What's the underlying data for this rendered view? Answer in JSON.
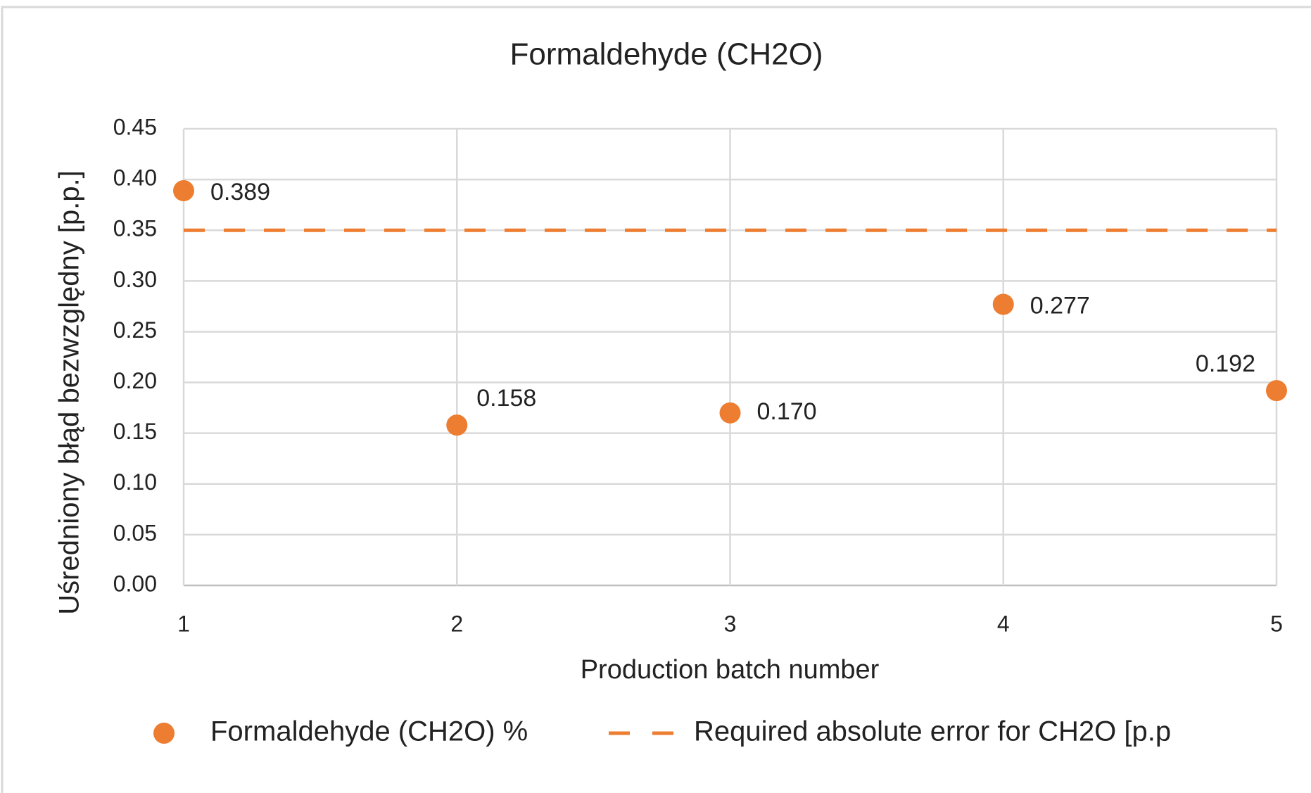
{
  "chart_data": {
    "type": "scatter",
    "title": "Formaldehyde (CH2O)",
    "xlabel": "Production batch number",
    "ylabel": "Uśredniony błąd bezwzględny [p.p.]",
    "x": [
      1,
      2,
      3,
      4,
      5
    ],
    "series": [
      {
        "name": "Formaldehyde (CH2O) %",
        "color": "#ed7d31",
        "values": [
          0.389,
          0.158,
          0.17,
          0.277,
          0.192
        ],
        "value_labels": [
          "0.389",
          "0.158",
          "0.170",
          "0.277",
          "0.192"
        ]
      },
      {
        "name": "Required absolute error for CH2O [p.p",
        "color": "#ed7d31",
        "values": [
          0.35,
          0.35,
          0.35,
          0.35,
          0.35
        ],
        "dashed": true
      }
    ],
    "xlim": [
      1,
      5
    ],
    "xticks": [
      1,
      2,
      3,
      4,
      5
    ],
    "ylim": [
      0,
      0.45
    ],
    "yticks": [
      {
        "value": 0,
        "label": "0.00"
      },
      {
        "value": 0.05,
        "label": "0.05"
      },
      {
        "value": 0.1,
        "label": "0.10"
      },
      {
        "value": 0.15,
        "label": "0.15"
      },
      {
        "value": 0.2,
        "label": "0.20"
      },
      {
        "value": 0.25,
        "label": "0.25"
      },
      {
        "value": 0.3,
        "label": "0.30"
      },
      {
        "value": 0.35,
        "label": "0.35"
      },
      {
        "value": 0.4,
        "label": "0.40"
      },
      {
        "value": 0.45,
        "label": "0.45"
      }
    ],
    "grid": true,
    "legend": "bottom"
  }
}
